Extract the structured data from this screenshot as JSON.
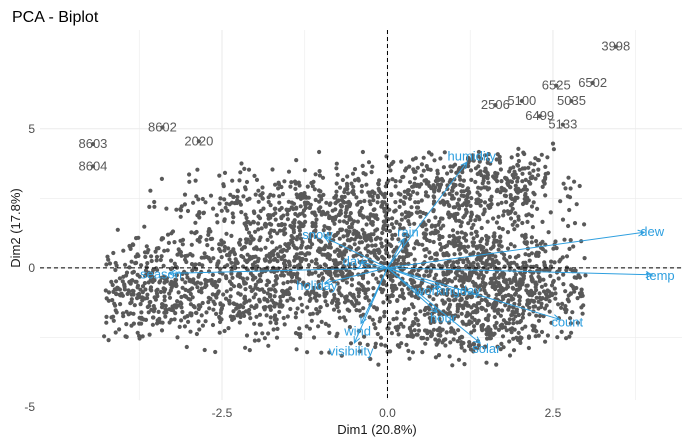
{
  "chart_data": {
    "type": "scatter",
    "title": "PCA - Biplot",
    "xlabel": "Dim1 (20.8%)",
    "ylabel": "Dim2 (17.8%)",
    "xlim": [
      -5.25,
      4.45
    ],
    "ylim": [
      -4.75,
      8.55
    ],
    "x_ticks": [
      -2.5,
      0.0,
      2.5
    ],
    "x_tick_labels": [
      "-2.5",
      "0.0",
      "2.5"
    ],
    "y_ticks": [
      -5,
      0,
      5
    ],
    "y_tick_labels": [
      "-5",
      "0",
      "5"
    ],
    "grid": true,
    "legend": "none",
    "colors": {
      "points": "#595959",
      "variables": "#2E9FDF",
      "reference_lines": "#000000",
      "grid": "#ebebeb"
    },
    "labeled_observations": [
      {
        "label": "3998",
        "x": 3.45,
        "y": 7.95
      },
      {
        "label": "6525",
        "x": 2.55,
        "y": 6.55
      },
      {
        "label": "6502",
        "x": 3.1,
        "y": 6.65
      },
      {
        "label": "5100",
        "x": 2.03,
        "y": 6.0
      },
      {
        "label": "5035",
        "x": 2.78,
        "y": 6.0
      },
      {
        "label": "2506",
        "x": 1.63,
        "y": 5.85
      },
      {
        "label": "6499",
        "x": 2.3,
        "y": 5.45
      },
      {
        "label": "5133",
        "x": 2.65,
        "y": 5.15
      },
      {
        "label": "8602",
        "x": -3.4,
        "y": 5.05
      },
      {
        "label": "8603",
        "x": -4.45,
        "y": 4.45
      },
      {
        "label": "2020",
        "x": -2.85,
        "y": 4.55
      },
      {
        "label": "8604",
        "x": -4.45,
        "y": 3.65
      }
    ],
    "variables": [
      {
        "name": "dew",
        "x": 3.88,
        "y": 1.28
      },
      {
        "name": "temp",
        "x": 4.0,
        "y": -0.25
      },
      {
        "name": "humidity",
        "x": 1.2,
        "y": 3.8
      },
      {
        "name": "count",
        "x": 2.6,
        "y": -1.85
      },
      {
        "name": "solar",
        "x": 1.4,
        "y": -2.7
      },
      {
        "name": "hour",
        "x": 0.75,
        "y": -1.6
      },
      {
        "name": "workingday",
        "x": 0.8,
        "y": -0.7
      },
      {
        "name": "rain",
        "x": 0.25,
        "y": 1.05
      },
      {
        "name": "snow",
        "x": -0.95,
        "y": 1.1
      },
      {
        "name": "day",
        "x": -0.4,
        "y": 0.2
      },
      {
        "name": "holiday",
        "x": -0.95,
        "y": -0.55
      },
      {
        "name": "wind",
        "x": -0.4,
        "y": -2.0
      },
      {
        "name": "visibility",
        "x": -0.5,
        "y": -2.7
      },
      {
        "name": "season",
        "x": -3.3,
        "y": -0.2
      }
    ]
  }
}
